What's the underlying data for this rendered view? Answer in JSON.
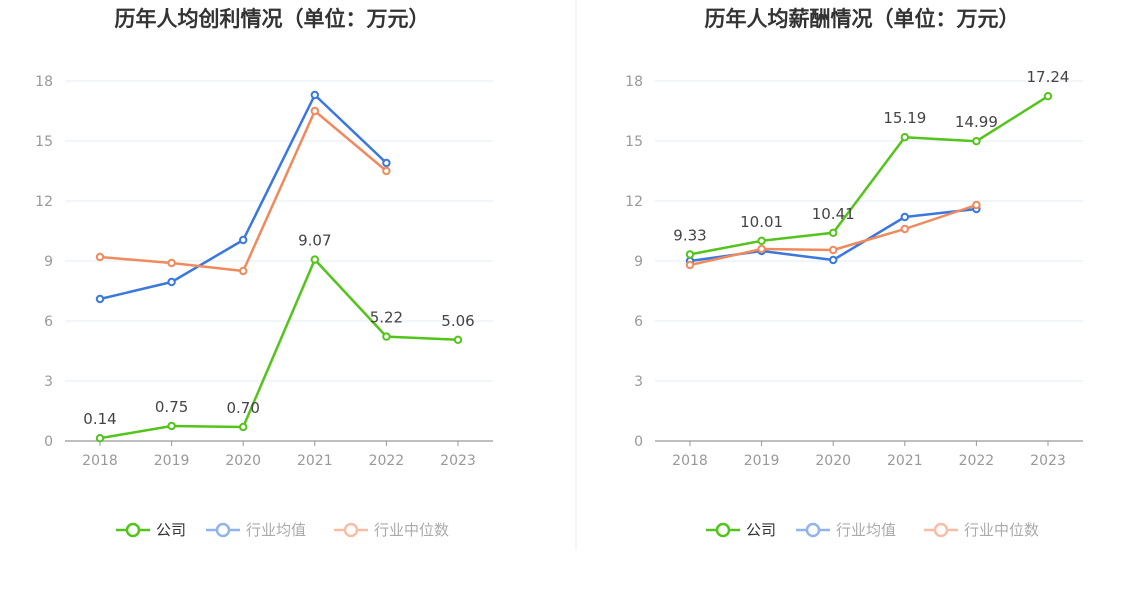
{
  "colors": {
    "company": "#52c41a",
    "avg": "#3a78de",
    "median": "#f08a5d",
    "grid": "#e6ebf5",
    "axis": "#999999",
    "divider": "#eeeeee"
  },
  "legend_icon": "circle-line-icon",
  "chart_data": [
    {
      "type": "line",
      "title": "历年人均创利情况（单位：万元）",
      "categories": [
        "2018",
        "2019",
        "2020",
        "2021",
        "2022",
        "2023"
      ],
      "yticks": [
        "0",
        "3",
        "6",
        "9",
        "12",
        "15",
        "18"
      ],
      "ylim": [
        0,
        18
      ],
      "grid": true,
      "legend_position": "bottom-center",
      "series": [
        {
          "name": "公司",
          "key": "company",
          "values": [
            0.14,
            0.75,
            0.7,
            9.07,
            5.22,
            5.06
          ],
          "labels": [
            "0.14",
            "0.75",
            "0.70",
            "9.07",
            "5.22",
            "5.06"
          ]
        },
        {
          "name": "行业均值",
          "key": "avg",
          "values": [
            7.1,
            7.95,
            10.05,
            17.3,
            13.9,
            null
          ]
        },
        {
          "name": "行业中位数",
          "key": "median",
          "values": [
            9.2,
            8.9,
            8.5,
            16.5,
            13.5,
            null
          ]
        }
      ]
    },
    {
      "type": "line",
      "title": "历年人均薪酬情况（单位：万元）",
      "categories": [
        "2018",
        "2019",
        "2020",
        "2021",
        "2022",
        "2023"
      ],
      "yticks": [
        "0",
        "3",
        "6",
        "9",
        "12",
        "15",
        "18"
      ],
      "ylim": [
        0,
        18
      ],
      "grid": true,
      "legend_position": "bottom-center",
      "series": [
        {
          "name": "公司",
          "key": "company",
          "values": [
            9.33,
            10.01,
            10.41,
            15.19,
            14.99,
            17.24
          ],
          "labels": [
            "9.33",
            "10.01",
            "10.41",
            "15.19",
            "14.99",
            "17.24"
          ]
        },
        {
          "name": "行业均值",
          "key": "avg",
          "values": [
            9.0,
            9.5,
            9.05,
            11.2,
            11.6,
            null
          ]
        },
        {
          "name": "行业中位数",
          "key": "median",
          "values": [
            8.8,
            9.6,
            9.55,
            10.6,
            11.8,
            null
          ]
        }
      ]
    }
  ]
}
